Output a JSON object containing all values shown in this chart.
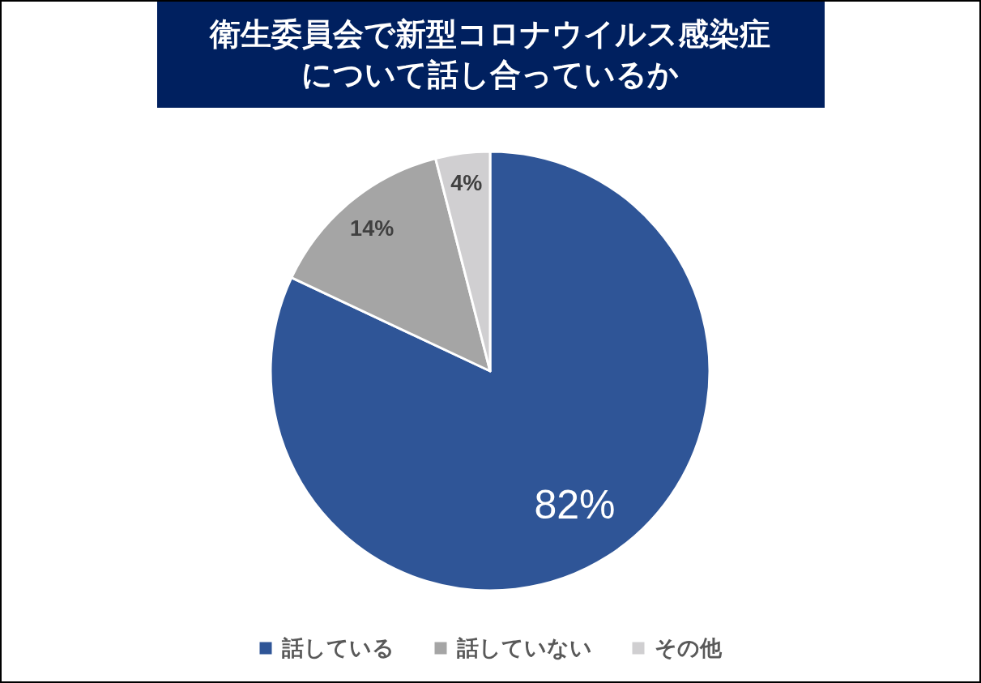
{
  "chart_data": {
    "type": "pie",
    "title": "衛生委員会で新型コロナウイルス感染症について話し合っているか",
    "categories": [
      "話している",
      "話していない",
      "その他"
    ],
    "values": [
      82,
      14,
      4
    ],
    "value_labels": [
      "82%",
      "14%",
      "4%"
    ],
    "colors": [
      "#2f5597",
      "#a5a5a5",
      "#d0cfd1"
    ],
    "legend": "bottom"
  }
}
